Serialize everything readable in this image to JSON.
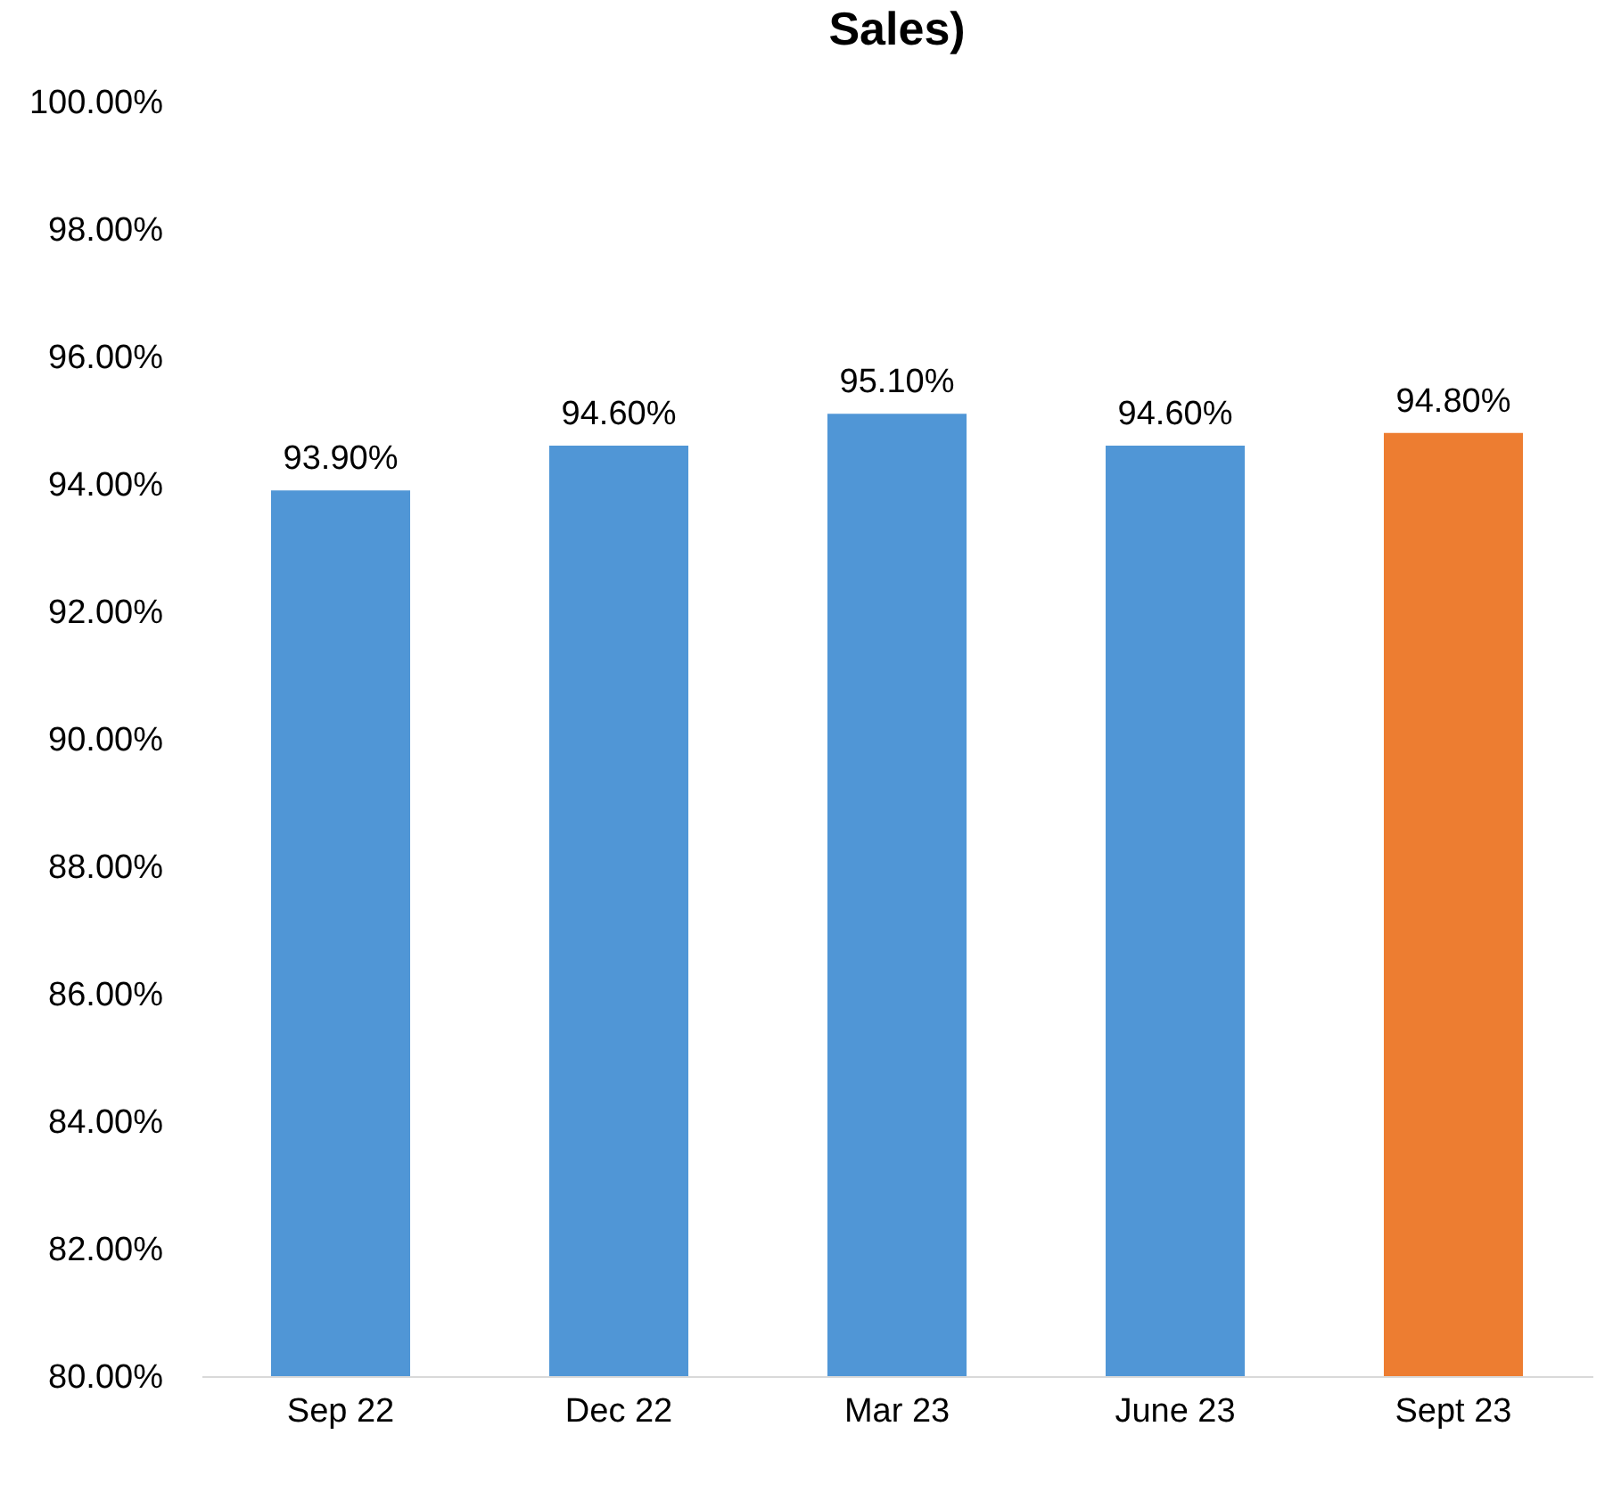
{
  "chart_data": {
    "type": "bar",
    "title": "Sales)",
    "categories": [
      "Sep 22",
      "Dec 22",
      "Mar 23",
      "June 23",
      "Sept 23"
    ],
    "values": [
      93.9,
      94.6,
      95.1,
      94.6,
      94.8
    ],
    "colors": [
      "#5096d6",
      "#5096d6",
      "#5096d6",
      "#5096d6",
      "#ed7d31"
    ],
    "value_labels": [
      "93.90%",
      "94.60%",
      "95.10%",
      "94.60%",
      "94.80%"
    ],
    "ylim": [
      80,
      100
    ],
    "yticks": [
      {
        "value": 80,
        "label": "80.00%"
      },
      {
        "value": 82,
        "label": "82.00%"
      },
      {
        "value": 84,
        "label": "84.00%"
      },
      {
        "value": 86,
        "label": "86.00%"
      },
      {
        "value": 88,
        "label": "88.00%"
      },
      {
        "value": 90,
        "label": "90.00%"
      },
      {
        "value": 92,
        "label": "92.00%"
      },
      {
        "value": 94,
        "label": "94.00%"
      },
      {
        "value": 96,
        "label": "96.00%"
      },
      {
        "value": 98,
        "label": "98.00%"
      },
      {
        "value": 100,
        "label": "100.00%"
      }
    ]
  }
}
